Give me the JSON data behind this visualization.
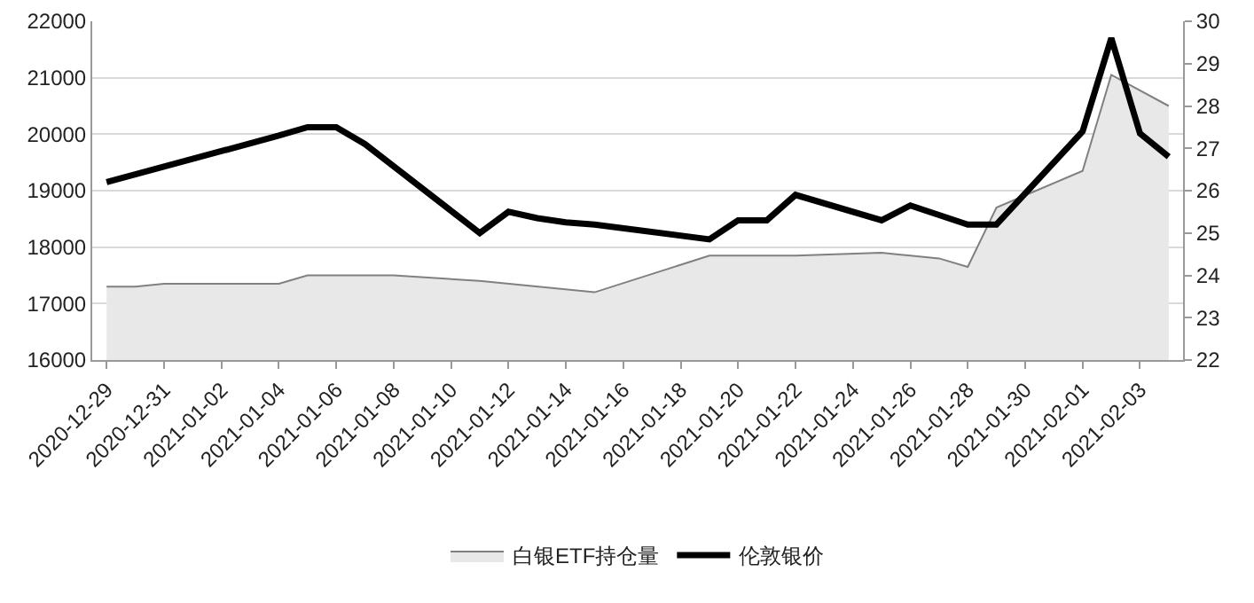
{
  "chart_data": {
    "type": "area",
    "xlim": [
      "2020-12-28T12:00",
      "2021-02-04T12:00"
    ],
    "xticks": [
      "2020-12-29",
      "2020-12-31",
      "2021-01-02",
      "2021-01-04",
      "2021-01-06",
      "2021-01-08",
      "2021-01-10",
      "2021-01-12",
      "2021-01-14",
      "2021-01-16",
      "2021-01-18",
      "2021-01-20",
      "2021-01-22",
      "2021-01-24",
      "2021-01-26",
      "2021-01-28",
      "2021-01-30",
      "2021-02-01",
      "2021-02-03"
    ],
    "ylim": [
      16000,
      22000
    ],
    "yticks": [
      16000,
      17000,
      18000,
      19000,
      20000,
      21000,
      22000
    ],
    "y2lim": [
      22,
      30
    ],
    "y2ticks": [
      22,
      23,
      24,
      25,
      26,
      27,
      28,
      29,
      30
    ],
    "grid": "y",
    "legend": "bottom",
    "series": [
      {
        "name": "白银ETF持仓量",
        "type": "area",
        "color": "#e8e8e8",
        "x": [
          "2020-12-29",
          "2020-12-30",
          "2020-12-31",
          "2021-01-04",
          "2021-01-05",
          "2021-01-06",
          "2021-01-08",
          "2021-01-11",
          "2021-01-15",
          "2021-01-19",
          "2021-01-20",
          "2021-01-22",
          "2021-01-25",
          "2021-01-26",
          "2021-01-27",
          "2021-01-28",
          "2021-01-29",
          "2021-02-01",
          "2021-02-02",
          "2021-02-04"
        ],
        "values": [
          17300,
          17300,
          17350,
          17350,
          17500,
          17500,
          17500,
          17400,
          17200,
          17850,
          17850,
          17850,
          17900,
          17850,
          17800,
          17650,
          18700,
          19350,
          21050,
          20500
        ]
      },
      {
        "name": "伦敦银价",
        "type": "line",
        "axis": "y2",
        "color": "#000000",
        "x": [
          "2020-12-29",
          "2021-01-04",
          "2021-01-05",
          "2021-01-06",
          "2021-01-07",
          "2021-01-11",
          "2021-01-12",
          "2021-01-13",
          "2021-01-14",
          "2021-01-15",
          "2021-01-19",
          "2021-01-20",
          "2021-01-21",
          "2021-01-22",
          "2021-01-25",
          "2021-01-26",
          "2021-01-28",
          "2021-01-29",
          "2021-02-01",
          "2021-02-02",
          "2021-02-03",
          "2021-02-04"
        ],
        "values": [
          26.2,
          27.3,
          27.5,
          27.5,
          27.1,
          25.0,
          25.5,
          25.35,
          25.25,
          25.2,
          24.85,
          25.3,
          25.3,
          25.9,
          25.3,
          25.65,
          25.2,
          25.2,
          27.4,
          29.6,
          27.35,
          26.8
        ]
      }
    ]
  }
}
